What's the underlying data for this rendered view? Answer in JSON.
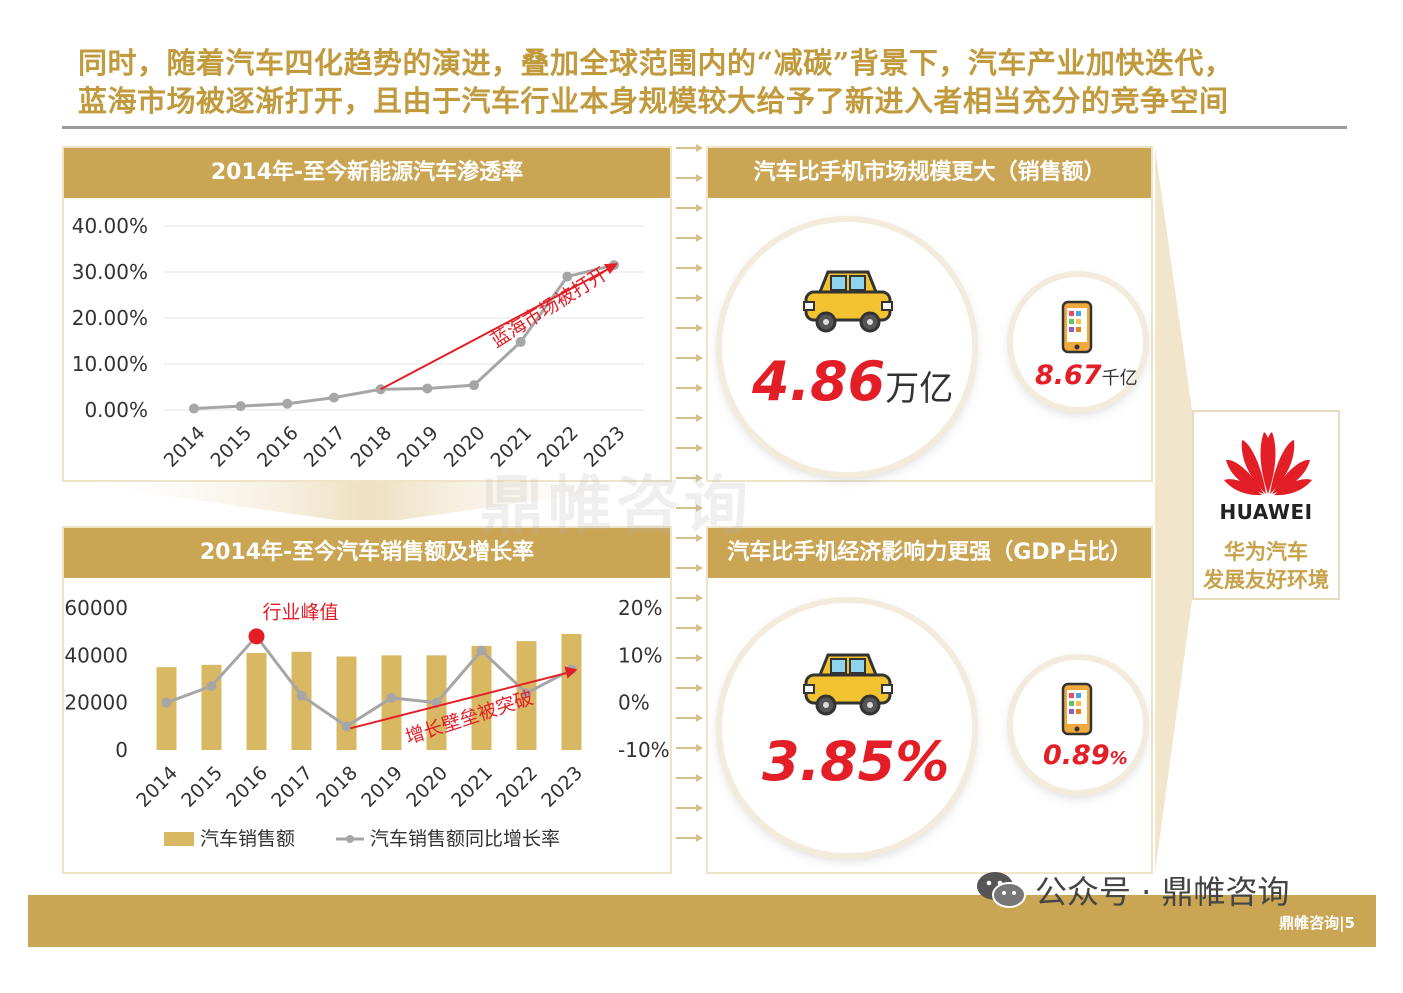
{
  "headline": {
    "line1": "同时，随着汽车四化趋势的演进，叠加全球范围内的“减碳”背景下，汽车产业加快迭代，",
    "line2": "蓝海市场被逐渐打开，且由于汽车行业本身规模较大给予了新进入者相当充分的竞争空间"
  },
  "panel_penetration": {
    "title": "2014年-至今新能源汽车渗透率",
    "annotation": "蓝海市场被打开"
  },
  "panel_sales": {
    "title": "2014年-至今汽车销售额及增长率",
    "peak_label": "行业峰值",
    "arrow_label": "增长壁垒被突破",
    "legend_bar": "汽车销售额",
    "legend_line": "汽车销售额同比增长率"
  },
  "panel_market": {
    "title": "汽车比手机市场规模更大（销售额）",
    "car_value": "4.86",
    "car_unit": "万亿",
    "phone_value": "8.67",
    "phone_unit": "千亿"
  },
  "panel_gdp": {
    "title": "汽车比手机经济影响力更强（GDP占比）",
    "car_value": "3.85%",
    "phone_value": "0.89",
    "phone_unit": "%"
  },
  "huawei": {
    "brand": "HUAWEI",
    "caption_line1": "华为汽车",
    "caption_line2": "发展友好环境"
  },
  "footer": {
    "wechat": "公众号 · 鼎帷咨询",
    "page_note": "鼎帷咨询|5",
    "watermark": "鼎帷咨询"
  },
  "colors": {
    "gold": "#c9a554",
    "red": "#e41e26",
    "gray_line": "#a6a6a6"
  },
  "chart_data": [
    {
      "type": "line",
      "title": "2014年-至今新能源汽车渗透率",
      "categories": [
        "2014",
        "2015",
        "2016",
        "2017",
        "2018",
        "2019",
        "2020",
        "2021",
        "2022",
        "2023"
      ],
      "values": [
        0.32,
        0.84,
        1.37,
        2.7,
        4.5,
        4.68,
        5.4,
        14.8,
        29.0,
        31.5
      ],
      "y_ticks": [
        "40.00%",
        "30.00%",
        "20.00%",
        "10.00%",
        "0.00%"
      ],
      "ylim": [
        0,
        40
      ],
      "grid": true
    },
    {
      "type": "bar",
      "title": "2014年-至今汽车销售额及增长率",
      "categories": [
        "2014",
        "2015",
        "2016",
        "2017",
        "2018",
        "2019",
        "2020",
        "2021",
        "2022",
        "2023"
      ],
      "series": [
        {
          "name": "汽车销售额",
          "type": "bar",
          "values": [
            35000,
            36000,
            41000,
            41500,
            39500,
            40000,
            40000,
            44000,
            46000,
            49000
          ]
        },
        {
          "name": "汽车销售额同比增长率",
          "type": "line",
          "axis": "right",
          "values": [
            0,
            3.5,
            14,
            1.5,
            -5,
            1,
            0,
            11,
            2,
            7
          ]
        }
      ],
      "y_left_ticks": [
        "60000",
        "40000",
        "20000",
        "0"
      ],
      "ylim_left": [
        0,
        60000
      ],
      "y_right_ticks": [
        "20%",
        "10%",
        "0%",
        "-10%"
      ],
      "ylim_right": [
        -10,
        20
      ],
      "legend": "bottom"
    }
  ]
}
